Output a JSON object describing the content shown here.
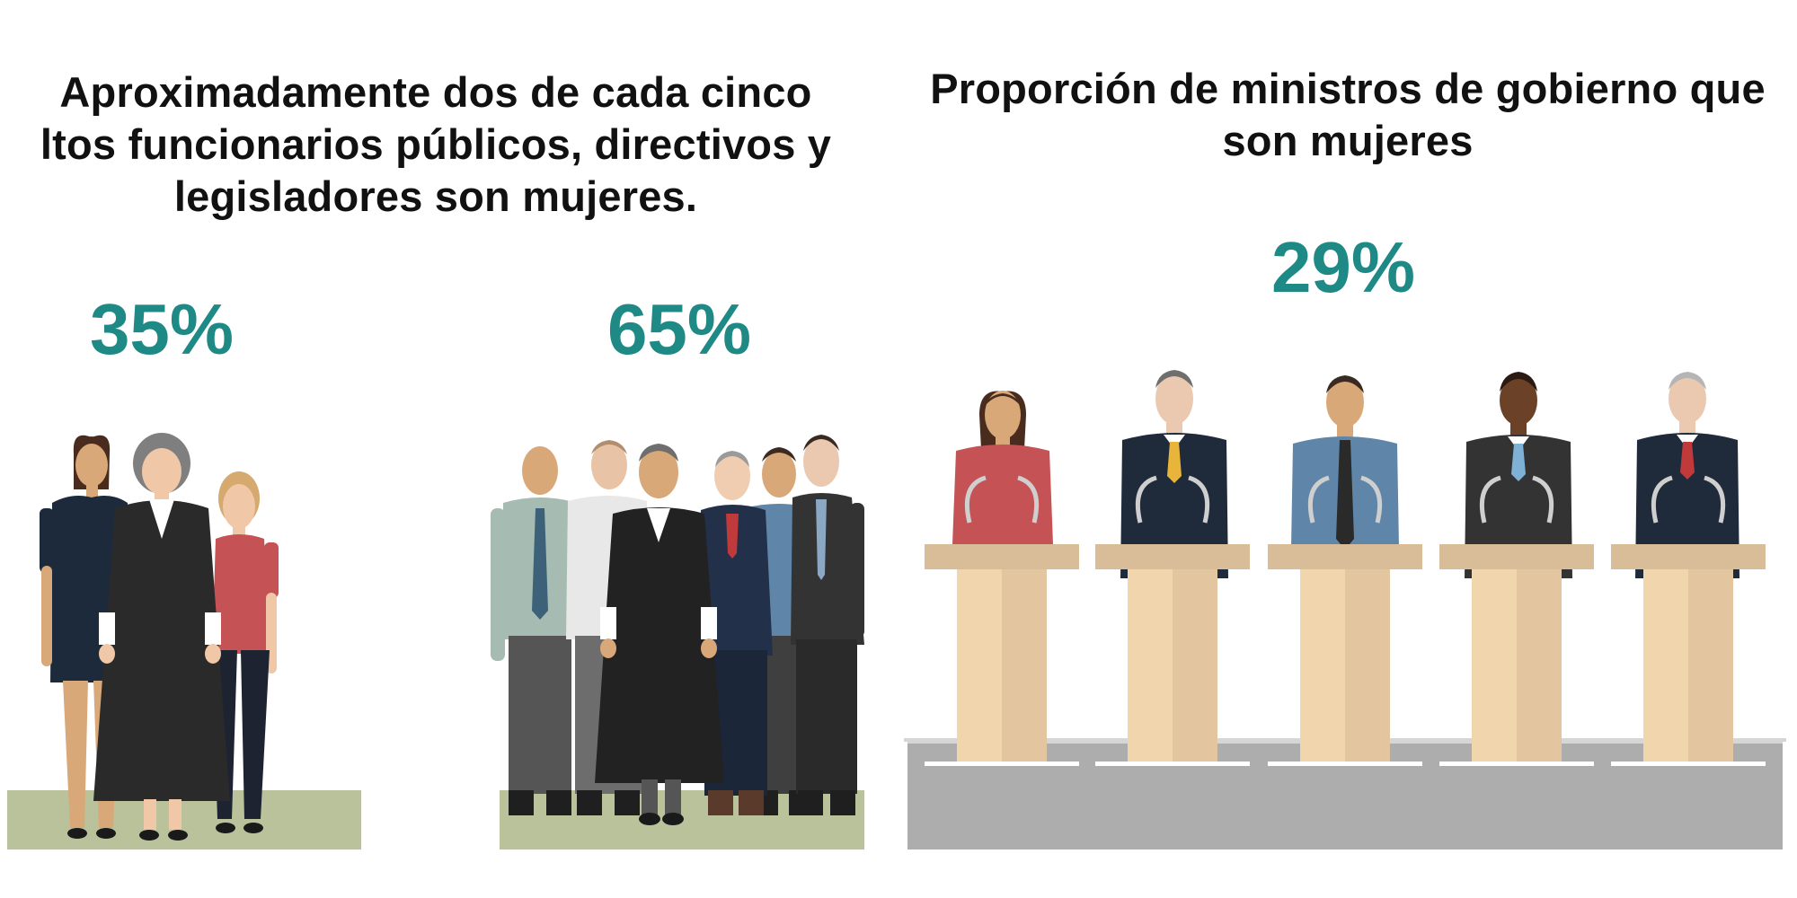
{
  "colors": {
    "accent": "#1f8a85",
    "heading": "#111111",
    "ground": "#b9c29a",
    "stage": "#adadae",
    "podium_top": "#d9bd98",
    "podium_body": "#f1d5ad",
    "podium_shade": "#e3c59f"
  },
  "left_panel": {
    "heading_lines": [
      "Aproximadamente dos de cada cinco",
      "ltos funcionarios públicos, directivos y",
      "legisladores son mujeres."
    ],
    "women_share": "35%",
    "men_share": "65%",
    "women_share_value": 35,
    "men_share_value": 65
  },
  "right_panel": {
    "heading_lines": [
      "Proporción de ministros de gobierno que",
      "son mujeres"
    ],
    "ministers_women_share": "29%",
    "ministers_women_share_value": 29
  },
  "icons": {
    "women_group": "group-of-three-women-icon",
    "men_group": "group-of-six-men-icon",
    "ministers": "five-ministers-at-podiums-icon"
  }
}
